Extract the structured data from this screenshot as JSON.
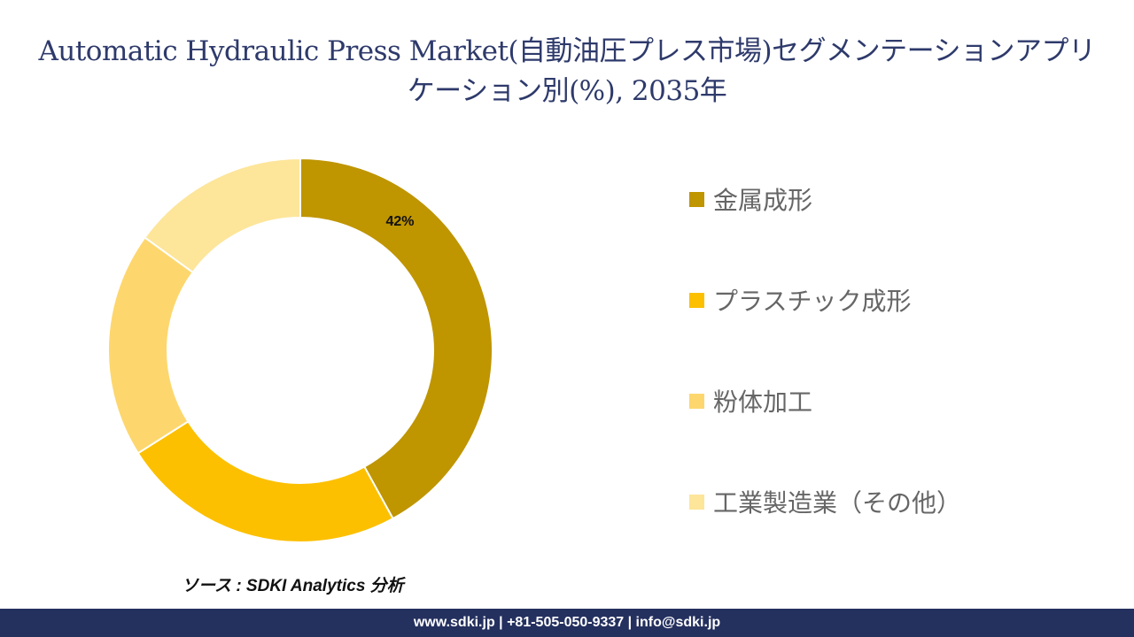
{
  "title": "Automatic Hydraulic Press Market(自動油圧プレス市場)セグメンテーションアプリケーション別(%), 2035年",
  "chart_data": {
    "type": "pie",
    "style": "donut",
    "title": "Automatic Hydraulic Press Market(自動油圧プレス市場)セグメンテーションアプリケーション別(%), 2035年",
    "categories": [
      "金属成形",
      "プラスチック成形",
      "粉体加工",
      "工業製造業（その他）"
    ],
    "values": [
      42,
      24,
      19,
      15
    ],
    "data_labels": [
      "42%",
      "",
      "",
      ""
    ],
    "colors": [
      "#bf9500",
      "#fcc000",
      "#fdd76e",
      "#fde59a"
    ],
    "legend_position": "right"
  },
  "source_text": "ソース : SDKI Analytics 分析",
  "footer_text": "www.sdki.jp | +81-505-050-9337 | info@sdki.jp"
}
